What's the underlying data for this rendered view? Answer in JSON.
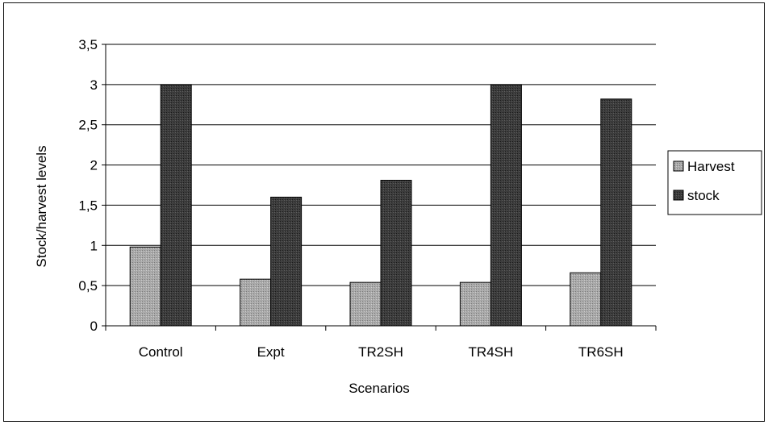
{
  "chart_data": {
    "type": "bar",
    "categories": [
      "Control",
      "Expt",
      "TR2SH",
      "TR4SH",
      "TR6SH"
    ],
    "series": [
      {
        "name": "Harvest",
        "values": [
          0.98,
          0.58,
          0.54,
          0.54,
          0.66
        ],
        "color": "#a9a9a9"
      },
      {
        "name": "stock",
        "values": [
          3.0,
          1.6,
          1.81,
          3.0,
          2.82
        ],
        "color": "#3c3c3c"
      }
    ],
    "xlabel": "Scenarios",
    "ylabel": "Stock/harvest levels",
    "ylim": [
      0,
      3.5
    ],
    "yticks": [
      "0",
      "0,5",
      "1",
      "1,5",
      "2",
      "2,5",
      "3",
      "3,5"
    ],
    "grid": true,
    "legend_position": "right"
  }
}
